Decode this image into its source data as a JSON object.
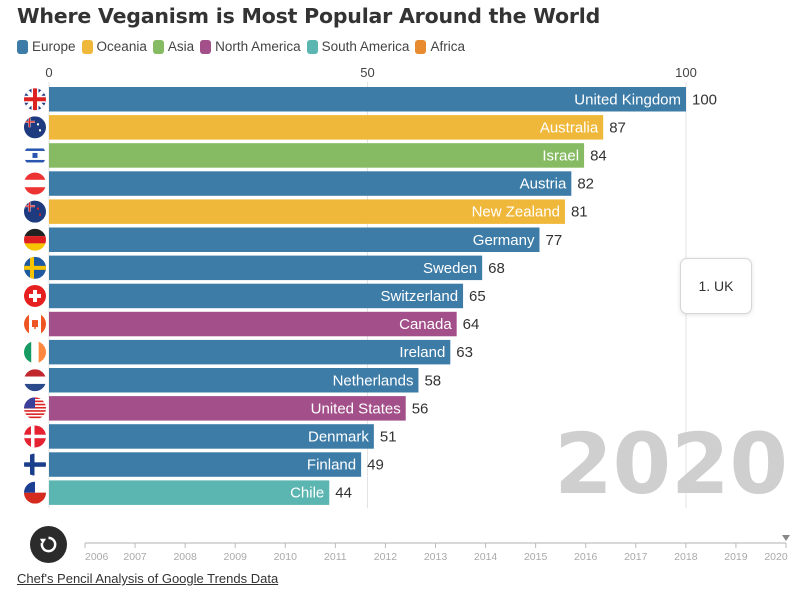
{
  "chart_data": {
    "type": "bar",
    "orientation": "horizontal",
    "title": "Where Veganism is Most Popular Around the World",
    "legend": [
      {
        "name": "Europe",
        "color": "#3e7ca8"
      },
      {
        "name": "Oceania",
        "color": "#f0b83a"
      },
      {
        "name": "Asia",
        "color": "#87bb63"
      },
      {
        "name": "North America",
        "color": "#a3508a"
      },
      {
        "name": "South America",
        "color": "#5bb5b1"
      },
      {
        "name": "Africa",
        "color": "#e88a2e"
      }
    ],
    "legend_position": "top-left",
    "xlim": [
      0,
      100
    ],
    "xticks": [
      0,
      50,
      100
    ],
    "grid": true,
    "current_year": "2020",
    "categories": [
      "United Kingdom",
      "Australia",
      "Israel",
      "Austria",
      "New Zealand",
      "Germany",
      "Sweden",
      "Switzerland",
      "Canada",
      "Ireland",
      "Netherlands",
      "United States",
      "Denmark",
      "Finland",
      "Chile"
    ],
    "values": [
      100,
      87,
      84,
      82,
      81,
      77,
      68,
      65,
      64,
      63,
      58,
      56,
      51,
      49,
      44
    ],
    "regions": [
      "Europe",
      "Oceania",
      "Asia",
      "Europe",
      "Oceania",
      "Europe",
      "Europe",
      "Europe",
      "North America",
      "Europe",
      "Europe",
      "North America",
      "Europe",
      "Europe",
      "South America"
    ],
    "flags": [
      "uk-flag-icon",
      "australia-flag-icon",
      "israel-flag-icon",
      "austria-flag-icon",
      "new-zealand-flag-icon",
      "germany-flag-icon",
      "sweden-flag-icon",
      "switzerland-flag-icon",
      "canada-flag-icon",
      "ireland-flag-icon",
      "netherlands-flag-icon",
      "usa-flag-icon",
      "denmark-flag-icon",
      "finland-flag-icon",
      "chile-flag-icon"
    ]
  },
  "tooltip": {
    "text": "1. UK"
  },
  "timeline": {
    "years": [
      "2006",
      "2007",
      "2008",
      "2009",
      "2010",
      "2011",
      "2012",
      "2013",
      "2014",
      "2015",
      "2016",
      "2017",
      "2018",
      "2019",
      "2020"
    ],
    "current": "2020"
  },
  "source": {
    "label": "Chef's Pencil Analysis of Google Trends Data"
  }
}
